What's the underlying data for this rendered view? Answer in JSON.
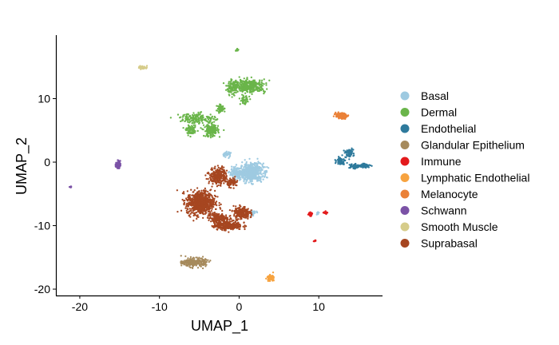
{
  "chart_data": {
    "type": "scatter",
    "title": "",
    "xlabel": "UMAP_1",
    "ylabel": "UMAP_2",
    "xlim": [
      -23,
      18
    ],
    "ylim": [
      -21,
      20
    ],
    "xticks": [
      -20,
      -10,
      0,
      10
    ],
    "yticks": [
      -20,
      -10,
      0,
      10
    ],
    "xtick_labels": [
      "-20",
      "-10",
      "0",
      "10"
    ],
    "ytick_labels": [
      "-20",
      "-10",
      "0",
      "10"
    ],
    "grid": false,
    "legend_position": "right",
    "series": [
      {
        "name": "Basal",
        "color": "#9ecae1",
        "clusters": [
          {
            "cx": 1.6,
            "cy": -1.6,
            "sx": 1.3,
            "sy": 1.3,
            "n": 520
          },
          {
            "cx": -0.2,
            "cy": -1.8,
            "sx": 0.9,
            "sy": 0.7,
            "n": 160
          },
          {
            "cx": -1.6,
            "cy": 1.2,
            "sx": 0.5,
            "sy": 0.4,
            "n": 40
          },
          {
            "cx": 1.8,
            "cy": -7.9,
            "sx": 0.4,
            "sy": 0.4,
            "n": 25
          },
          {
            "cx": 9.9,
            "cy": -8.1,
            "sx": 0.15,
            "sy": 0.2,
            "n": 10
          }
        ]
      },
      {
        "name": "Dermal",
        "color": "#6ab54a",
        "clusters": [
          {
            "cx": 1.2,
            "cy": 12.0,
            "sx": 1.9,
            "sy": 0.9,
            "n": 380
          },
          {
            "cx": -0.9,
            "cy": 11.6,
            "sx": 0.6,
            "sy": 1.0,
            "n": 90
          },
          {
            "cx": 0.6,
            "cy": 9.8,
            "sx": 0.4,
            "sy": 0.6,
            "n": 40
          },
          {
            "cx": -3.5,
            "cy": 5.0,
            "sx": 0.8,
            "sy": 0.9,
            "n": 200
          },
          {
            "cx": -5.2,
            "cy": 6.9,
            "sx": 2.0,
            "sy": 0.7,
            "n": 170
          },
          {
            "cx": -6.0,
            "cy": 5.0,
            "sx": 0.6,
            "sy": 0.6,
            "n": 80
          },
          {
            "cx": -2.3,
            "cy": 8.4,
            "sx": 0.5,
            "sy": 0.5,
            "n": 60
          },
          {
            "cx": -0.3,
            "cy": 17.7,
            "sx": 0.18,
            "sy": 0.22,
            "n": 15
          }
        ]
      },
      {
        "name": "Endothelial",
        "color": "#2e7a9c",
        "clusters": [
          {
            "cx": 13.8,
            "cy": 1.4,
            "sx": 0.5,
            "sy": 0.6,
            "n": 70
          },
          {
            "cx": 12.8,
            "cy": 0.2,
            "sx": 0.5,
            "sy": 0.5,
            "n": 70
          },
          {
            "cx": 14.4,
            "cy": -0.6,
            "sx": 0.6,
            "sy": 0.4,
            "n": 70
          },
          {
            "cx": 15.8,
            "cy": -0.6,
            "sx": 0.6,
            "sy": 0.3,
            "n": 60
          }
        ]
      },
      {
        "name": "Glandular Epithelium",
        "color": "#a68a5c",
        "clusters": [
          {
            "cx": -5.6,
            "cy": -15.8,
            "sx": 1.3,
            "sy": 0.6,
            "n": 260
          }
        ]
      },
      {
        "name": "Immune",
        "color": "#e31a1c",
        "clusters": [
          {
            "cx": 8.9,
            "cy": -8.2,
            "sx": 0.25,
            "sy": 0.25,
            "n": 35
          },
          {
            "cx": 10.9,
            "cy": -8.0,
            "sx": 0.2,
            "sy": 0.2,
            "n": 15
          },
          {
            "cx": 9.5,
            "cy": -12.4,
            "sx": 0.15,
            "sy": 0.15,
            "n": 8
          }
        ]
      },
      {
        "name": "Lymphatic Endothelial",
        "color": "#f7a33f",
        "clusters": [
          {
            "cx": 3.9,
            "cy": -18.2,
            "sx": 0.35,
            "sy": 0.35,
            "n": 110
          }
        ]
      },
      {
        "name": "Melanocyte",
        "color": "#ea8138",
        "clusters": [
          {
            "cx": 12.8,
            "cy": 7.3,
            "sx": 0.6,
            "sy": 0.4,
            "n": 180
          }
        ]
      },
      {
        "name": "Schwann",
        "color": "#7b52a6",
        "clusters": [
          {
            "cx": -15.2,
            "cy": -0.4,
            "sx": 0.25,
            "sy": 0.5,
            "n": 90
          },
          {
            "cx": -21.1,
            "cy": -3.9,
            "sx": 0.15,
            "sy": 0.15,
            "n": 8
          }
        ]
      },
      {
        "name": "Smooth Muscle",
        "color": "#d6cc8a",
        "clusters": [
          {
            "cx": -12.1,
            "cy": 14.9,
            "sx": 0.5,
            "sy": 0.2,
            "n": 50
          }
        ]
      },
      {
        "name": "Suprabasal",
        "color": "#a64620",
        "clusters": [
          {
            "cx": -2.6,
            "cy": -2.2,
            "sx": 1.0,
            "sy": 1.2,
            "n": 280
          },
          {
            "cx": -4.8,
            "cy": -6.4,
            "sx": 1.6,
            "sy": 1.7,
            "n": 700
          },
          {
            "cx": -2.7,
            "cy": -8.8,
            "sx": 1.1,
            "sy": 0.7,
            "n": 150
          },
          {
            "cx": -1.4,
            "cy": -10.0,
            "sx": 1.6,
            "sy": 0.6,
            "n": 320
          },
          {
            "cx": 0.3,
            "cy": -8.0,
            "sx": 0.9,
            "sy": 0.9,
            "n": 220
          },
          {
            "cx": -0.8,
            "cy": -3.2,
            "sx": 0.6,
            "sy": 0.6,
            "n": 70
          }
        ]
      }
    ]
  }
}
